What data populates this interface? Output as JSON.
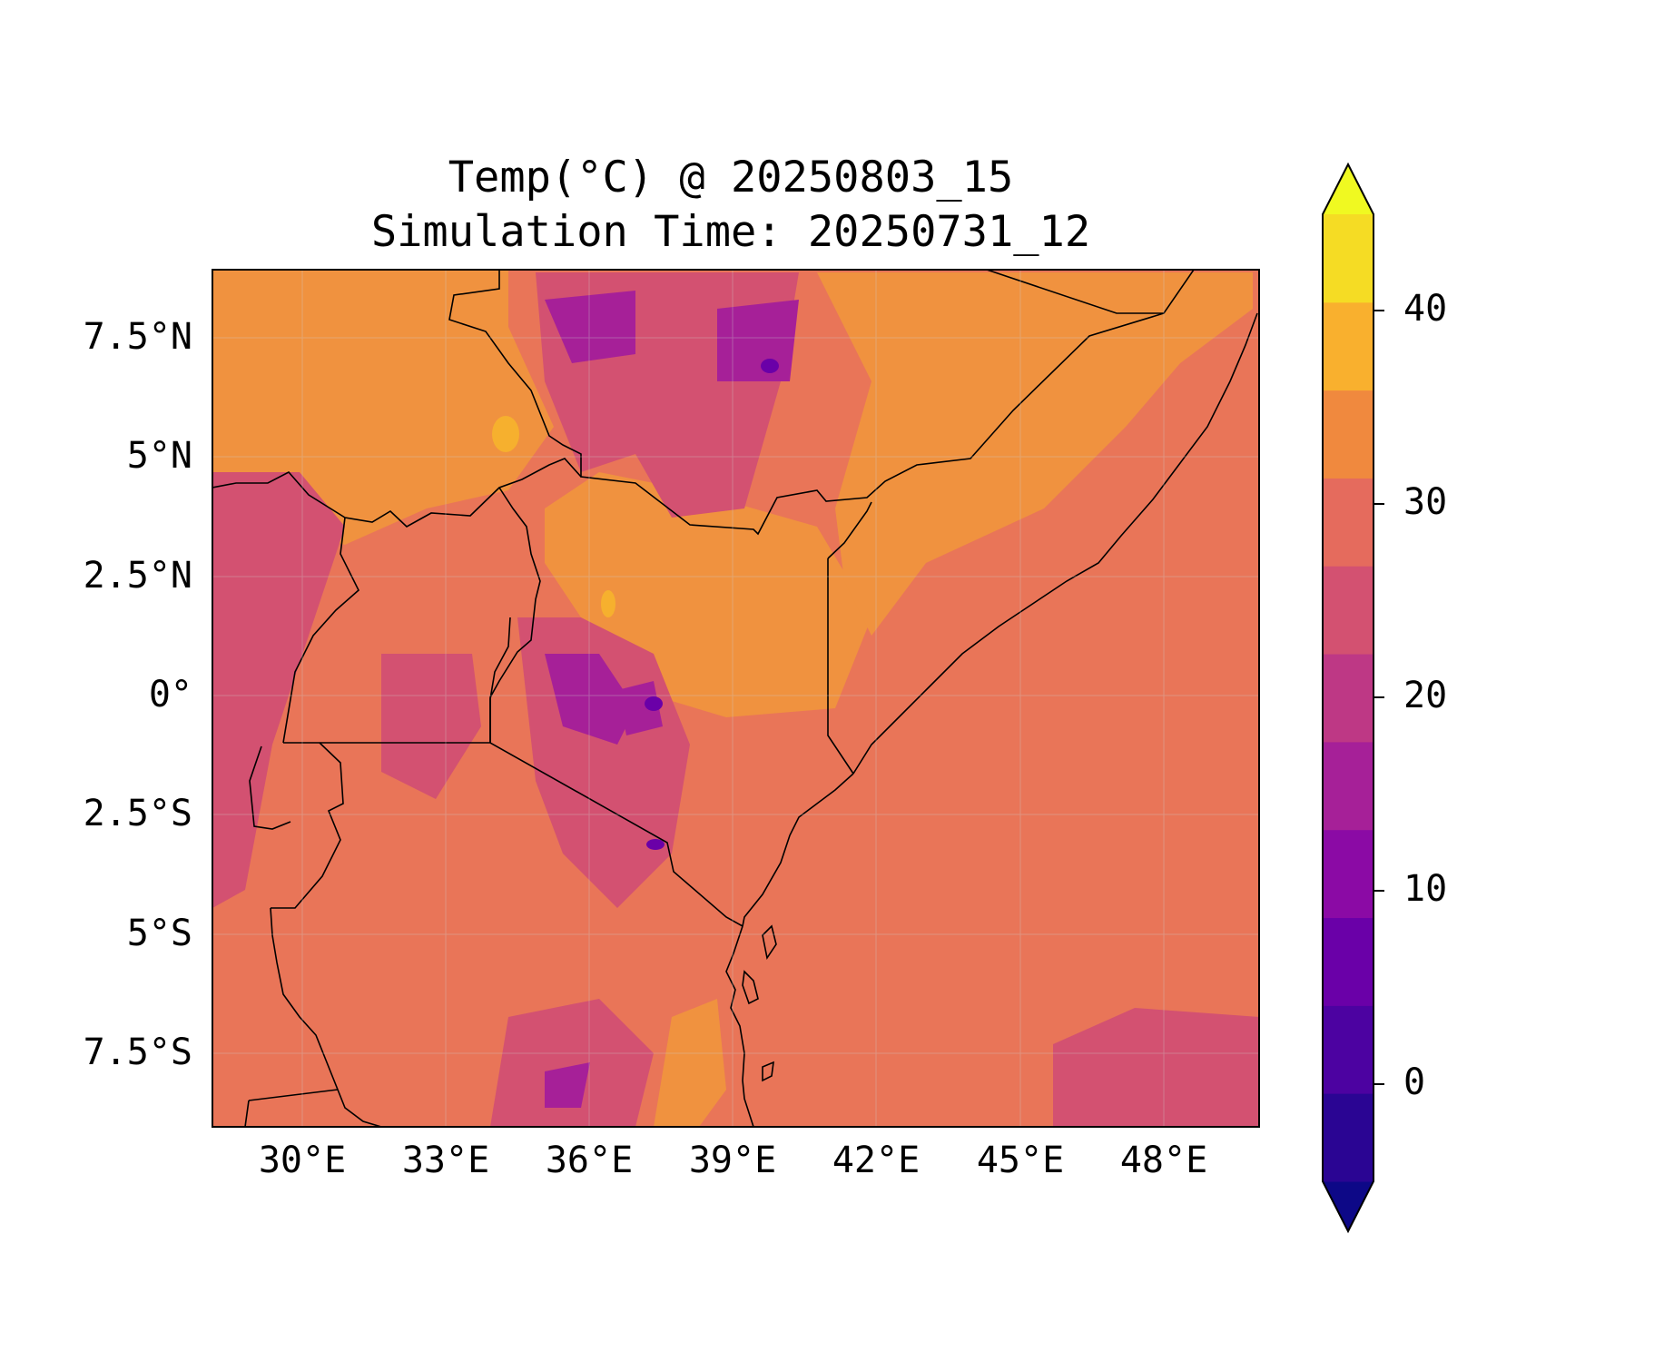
{
  "title": {
    "line1": "Temp(°C) @ 20250803_15",
    "line2": "Simulation Time: 20250731_12"
  },
  "axes": {
    "lat_ticks": [
      "7.5°N",
      "5°N",
      "2.5°N",
      "0°",
      "2.5°S",
      "5°S",
      "7.5°S"
    ],
    "lon_ticks": [
      "30°E",
      "33°E",
      "36°E",
      "39°E",
      "42°E",
      "45°E",
      "48°E"
    ]
  },
  "colorbar": {
    "ticks": [
      "0",
      "10",
      "20",
      "30",
      "40"
    ],
    "colors": [
      "#0d0887",
      "#2a0593",
      "#4c02a1",
      "#6a00a8",
      "#8b0aa5",
      "#a62098",
      "#be3885",
      "#d35171",
      "#e56b5d",
      "#f0893e",
      "#f9b02e",
      "#f5dc24",
      "#f0f921"
    ],
    "extend": "both"
  },
  "chart_data": {
    "type": "heatmap",
    "variable": "Temp(°C)",
    "valid_time": "20250803_15",
    "simulation_time": "20250731_12",
    "lon_range": [
      28,
      50
    ],
    "lat_range": [
      -9,
      9
    ],
    "levels": [
      -5,
      0,
      5,
      10,
      15,
      20,
      25,
      30,
      35,
      40,
      45
    ],
    "dominant_value_range": [
      25,
      30
    ]
  }
}
